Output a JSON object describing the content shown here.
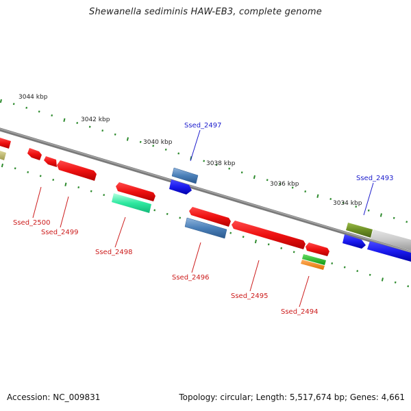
{
  "header": {
    "title": "Shewanella sediminis HAW-EB3, complete genome"
  },
  "footer": {
    "accession": "Accession: NC_009831",
    "summary": "Topology: circular; Length: 5,517,674 bp; Genes: 4,661"
  },
  "scale_labels": [
    "3044 kbp",
    "3042 kbp",
    "3040 kbp",
    "3038 kbp",
    "3036 kbp",
    "3034 kbp"
  ],
  "gene_labels": [
    {
      "name": "Ssed_2497",
      "strand": "forward"
    },
    {
      "name": "Ssed_2493",
      "strand": "forward"
    },
    {
      "name": "Ssed_2500",
      "strand": "reverse"
    },
    {
      "name": "Ssed_2499",
      "strand": "reverse"
    },
    {
      "name": "Ssed_2498",
      "strand": "reverse"
    },
    {
      "name": "Ssed_2496",
      "strand": "reverse"
    },
    {
      "name": "Ssed_2495",
      "strand": "reverse"
    },
    {
      "name": "Ssed_2494",
      "strand": "reverse"
    }
  ],
  "colors": {
    "backbone": "#7a7a7a",
    "ticks": "#2e8b2e",
    "forward_label": "#1a1acc",
    "reverse_label": "#cc1a1a",
    "red_gene": "#ee1111",
    "blue_gene": "#1a1aee",
    "steel_gene": "#4a7fb8",
    "teal_gene": "#2ee8a0",
    "olive_gene": "#6b8e23",
    "gray_gene": "#c8c8c8",
    "green_gene": "#22bb22",
    "orange_gene": "#ff8c1a",
    "khaki_gene": "#bdb76b"
  }
}
